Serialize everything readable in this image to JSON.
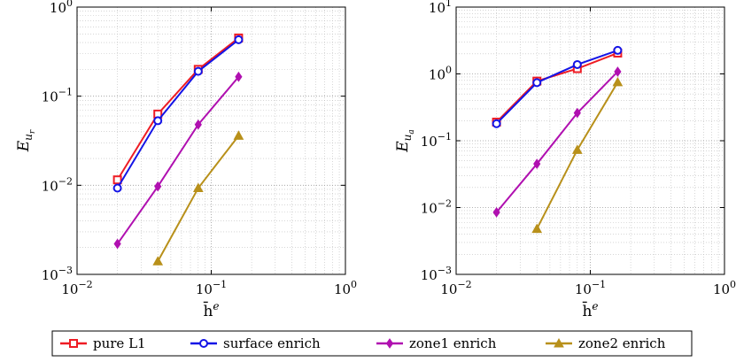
{
  "chart_data": [
    {
      "type": "line",
      "xscale": "log",
      "yscale": "log",
      "xlim": [
        0.01,
        1
      ],
      "ylim": [
        0.001,
        1
      ],
      "xlabel": "h̄",
      "xlabel_sup": "e",
      "ylabel": "E",
      "ylabel_sub": "u",
      "ylabel_subsub": "r",
      "grid": true,
      "x_ticks": [
        {
          "value": 0.01,
          "base": "10",
          "exp": "−2"
        },
        {
          "value": 0.1,
          "base": "10",
          "exp": "−1"
        },
        {
          "value": 1,
          "base": "10",
          "exp": "0"
        }
      ],
      "y_ticks": [
        {
          "value": 0.001,
          "base": "10",
          "exp": "−3"
        },
        {
          "value": 0.01,
          "base": "10",
          "exp": "−2"
        },
        {
          "value": 0.1,
          "base": "10",
          "exp": "−1"
        },
        {
          "value": 1,
          "base": "10",
          "exp": "0"
        }
      ],
      "series": [
        {
          "name": "pure L1",
          "x": [
            0.02,
            0.04,
            0.08,
            0.16
          ],
          "y": [
            0.0115,
            0.063,
            0.2,
            0.45
          ]
        },
        {
          "name": "surface enrich",
          "x": [
            0.02,
            0.04,
            0.08,
            0.16
          ],
          "y": [
            0.0093,
            0.053,
            0.19,
            0.43
          ]
        },
        {
          "name": "zone1 enrich",
          "x": [
            0.02,
            0.04,
            0.08,
            0.16
          ],
          "y": [
            0.0022,
            0.0097,
            0.048,
            0.165
          ]
        },
        {
          "name": "zone2 enrich",
          "x": [
            0.04,
            0.08,
            0.16
          ],
          "y": [
            0.0014,
            0.0093,
            0.036
          ]
        }
      ]
    },
    {
      "type": "line",
      "xscale": "log",
      "yscale": "log",
      "xlim": [
        0.01,
        1
      ],
      "ylim": [
        0.001,
        10
      ],
      "xlabel": "h̄",
      "xlabel_sup": "e",
      "ylabel": "E",
      "ylabel_sub": "u",
      "ylabel_subsub": "a",
      "grid": true,
      "x_ticks": [
        {
          "value": 0.01,
          "base": "10",
          "exp": "−2"
        },
        {
          "value": 0.1,
          "base": "10",
          "exp": "−1"
        },
        {
          "value": 1,
          "base": "10",
          "exp": "0"
        }
      ],
      "y_ticks": [
        {
          "value": 0.001,
          "base": "10",
          "exp": "−3"
        },
        {
          "value": 0.01,
          "base": "10",
          "exp": "−2"
        },
        {
          "value": 0.1,
          "base": "10",
          "exp": "−1"
        },
        {
          "value": 1,
          "base": "10",
          "exp": "0"
        },
        {
          "value": 10,
          "base": "10",
          "exp": "1"
        }
      ],
      "series": [
        {
          "name": "pure L1",
          "x": [
            0.02,
            0.04,
            0.08,
            0.16
          ],
          "y": [
            0.19,
            0.78,
            1.2,
            2.05
          ]
        },
        {
          "name": "surface enrich",
          "x": [
            0.02,
            0.04,
            0.08,
            0.16
          ],
          "y": [
            0.18,
            0.74,
            1.38,
            2.25
          ]
        },
        {
          "name": "zone1 enrich",
          "x": [
            0.02,
            0.04,
            0.08,
            0.16
          ],
          "y": [
            0.0085,
            0.045,
            0.26,
            1.08
          ]
        },
        {
          "name": "zone2 enrich",
          "x": [
            0.04,
            0.08,
            0.16
          ],
          "y": [
            0.0048,
            0.073,
            0.75
          ]
        }
      ]
    }
  ],
  "legend": {
    "placement": "bottom-center",
    "entries": [
      {
        "name": "pure L1",
        "color": "#ee1c24",
        "marker": "square"
      },
      {
        "name": "surface enrich",
        "color": "#1414e6",
        "marker": "circle"
      },
      {
        "name": "zone1 enrich",
        "color": "#b010b0",
        "marker": "diamond"
      },
      {
        "name": "zone2 enrich",
        "color": "#b8901a",
        "marker": "triangle"
      }
    ]
  }
}
